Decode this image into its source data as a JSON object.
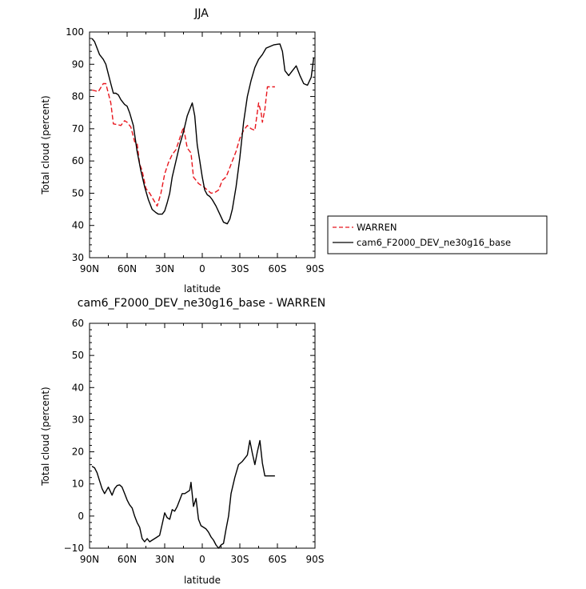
{
  "chart_data": [
    {
      "type": "line",
      "title": "JJA",
      "xlabel": "latitude",
      "ylabel": "Total cloud (percent)",
      "xlim": [
        90,
        -90
      ],
      "ylim": [
        30,
        100
      ],
      "xticks": [
        90,
        60,
        30,
        0,
        -30,
        -60,
        -90
      ],
      "xtick_labels": [
        "90N",
        "60N",
        "30N",
        "0",
        "30S",
        "60S",
        "90S"
      ],
      "yticks": [
        30,
        40,
        50,
        60,
        70,
        80,
        90,
        100
      ],
      "ytick_labels": [
        "30",
        "40",
        "50",
        "60",
        "70",
        "80",
        "90",
        "100"
      ],
      "grid": false,
      "legend_position": "outside-right",
      "series": [
        {
          "name": "WARREN",
          "color": "#e8161d",
          "style": "dashed",
          "x": [
            88,
            83,
            79,
            77,
            73,
            71,
            68,
            65,
            62,
            60,
            57,
            54,
            52,
            50,
            48,
            45,
            42,
            39,
            36,
            33,
            30,
            27,
            24,
            21,
            18,
            15,
            12,
            9,
            7,
            5,
            3,
            1,
            -1,
            -4,
            -7,
            -10,
            -13,
            -16,
            -19,
            -22,
            -25,
            -27,
            -30,
            -33,
            -36,
            -39,
            -42,
            -45,
            -47,
            -48,
            -50,
            -52,
            -54,
            -56,
            -58
          ],
          "y": [
            82,
            81.5,
            84,
            84,
            78,
            71.5,
            71.3,
            71,
            72.5,
            72,
            70.5,
            66,
            65.5,
            59,
            57,
            51.5,
            50,
            48,
            46,
            50,
            56,
            59.5,
            62,
            63.5,
            67,
            70.5,
            64,
            62.5,
            55,
            54,
            53,
            52.5,
            52,
            51,
            50,
            50.2,
            51,
            54,
            55,
            58,
            61,
            63,
            67,
            69.5,
            71,
            70,
            69.5,
            78,
            75,
            72,
            76,
            83,
            83,
            83,
            83
          ]
        },
        {
          "name": "cam6_F2000_DEV_ne30g16_base",
          "color": "#000000",
          "style": "solid",
          "x": [
            88,
            86,
            84,
            82,
            79,
            77,
            75,
            73,
            71,
            69,
            67,
            65,
            62,
            60,
            58,
            55,
            52,
            49,
            46,
            43,
            40,
            37,
            35,
            32,
            30,
            28,
            26,
            24,
            21,
            18,
            15,
            12,
            10,
            8,
            6,
            4,
            2,
            0,
            -2,
            -4,
            -6,
            -8,
            -11,
            -14,
            -17,
            -20,
            -22,
            -24,
            -27,
            -30,
            -33,
            -36,
            -39,
            -42,
            -45,
            -48,
            -51,
            -54,
            -57,
            -60,
            -62,
            -64,
            -66,
            -69,
            -72,
            -75,
            -78,
            -81,
            -84,
            -87,
            -89
          ],
          "y": [
            98,
            97,
            95,
            93,
            91.5,
            90,
            87,
            84,
            81,
            81,
            80.5,
            79,
            77.5,
            77,
            75,
            71,
            63,
            57,
            52,
            48,
            45,
            44,
            43.5,
            43.5,
            44.5,
            47,
            50,
            55,
            60,
            65,
            69,
            74,
            76,
            78,
            74,
            65,
            60,
            55,
            51,
            49.5,
            49,
            48,
            46,
            43.5,
            41,
            40.5,
            42,
            45,
            52,
            61,
            72,
            80,
            85,
            89,
            91.5,
            93,
            95,
            95.5,
            96,
            96.2,
            96.3,
            94,
            88,
            86.5,
            88,
            89.5,
            86.5,
            84,
            83.5,
            86,
            92
          ]
        }
      ]
    },
    {
      "type": "line",
      "title": "cam6_F2000_DEV_ne30g16_base - WARREN",
      "xlabel": "latitude",
      "ylabel": "Total cloud (percent)",
      "xlim": [
        90,
        -90
      ],
      "ylim": [
        -10,
        60
      ],
      "xticks": [
        90,
        60,
        30,
        0,
        -30,
        -60,
        -90
      ],
      "xtick_labels": [
        "90N",
        "60N",
        "30N",
        "0",
        "30S",
        "60S",
        "90S"
      ],
      "yticks": [
        -10,
        0,
        10,
        20,
        30,
        40,
        50,
        60
      ],
      "ytick_labels": [
        "−10",
        "0",
        "10",
        "20",
        "30",
        "40",
        "50",
        "60"
      ],
      "grid": false,
      "series": [
        {
          "color": "#000000",
          "style": "solid",
          "x": [
            88,
            86,
            84,
            82,
            80,
            78,
            75,
            72,
            70,
            68,
            66,
            64,
            62,
            60,
            58,
            56,
            54,
            52,
            50,
            48,
            46,
            44,
            42,
            40,
            38,
            36,
            34,
            32,
            30,
            28,
            26,
            24,
            22,
            20,
            18,
            16,
            14,
            12,
            10,
            9,
            7,
            5,
            3,
            1,
            -1,
            -3,
            -5,
            -7,
            -9,
            -11,
            -13,
            -15,
            -17,
            -19,
            -21,
            -23,
            -26,
            -29,
            -32,
            -34,
            -36,
            -38,
            -40,
            -42,
            -44,
            -46,
            -48,
            -50,
            -52,
            -54,
            -56,
            -58
          ],
          "y": [
            15.5,
            15,
            13.5,
            11,
            8.5,
            7,
            9,
            6.5,
            8.5,
            9.5,
            9.7,
            9,
            7,
            5,
            3.5,
            2.5,
            0,
            -2,
            -3.5,
            -7,
            -8,
            -7,
            -8,
            -7.5,
            -7,
            -6.5,
            -6,
            -2.5,
            1,
            -0.5,
            -1,
            2,
            1.5,
            3,
            5,
            7,
            7,
            7.5,
            8,
            10.5,
            3,
            5.5,
            -1,
            -3,
            -3.5,
            -4,
            -5,
            -6.5,
            -7.5,
            -9,
            -10,
            -9,
            -8.5,
            -4,
            0,
            7,
            12,
            16,
            17,
            18,
            19,
            23.5,
            19.5,
            16,
            20,
            23.5,
            16.5,
            12.5,
            12.5,
            12.5,
            12.5,
            12.5
          ]
        }
      ]
    }
  ]
}
